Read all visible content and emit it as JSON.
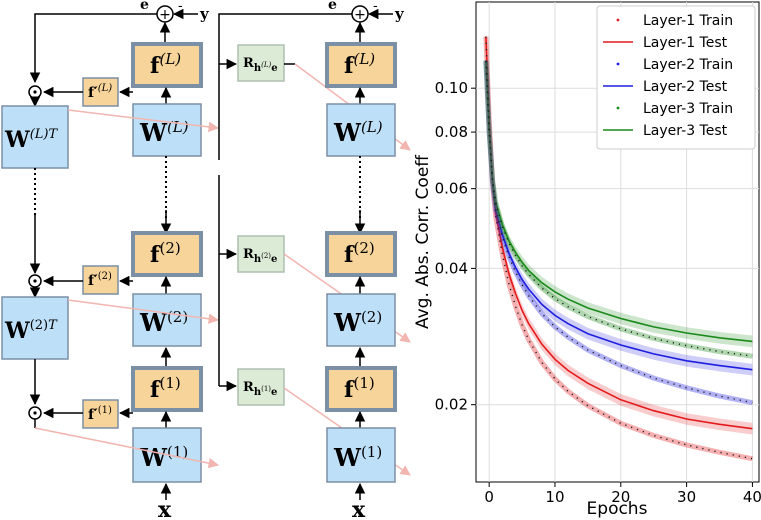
{
  "diagram": {
    "left_net": {
      "e_label": "e",
      "y_label": "y",
      "minus": "-",
      "x_label": "x",
      "fL": "f",
      "fL_sup": "(L)",
      "WL": "W",
      "WL_sup": "(L)",
      "f2": "f",
      "f2_sup": "(2)",
      "W2": "W",
      "W2_sup": "(2)",
      "f1": "f",
      "f1_sup": "(1)",
      "W1": "W",
      "W1_sup": "(1)",
      "WLT": "W",
      "WLT_sup": "(L)",
      "WLT_T": "T",
      "W2T": "W",
      "W2T_sup": "(2)",
      "W2T_T": "T",
      "dL": "f′",
      "dL_sup": "(L)",
      "d2": "f′",
      "d2_sup": "(2)",
      "d1": "f′",
      "d1_sup": "(1)"
    },
    "right_net": {
      "e_label": "e",
      "y_label": "y",
      "minus": "-",
      "x_label": "x",
      "RL": "R",
      "RL_sub": "h",
      "RL_subsup": "(L)",
      "RL_e": "e",
      "R2": "R",
      "R2_sub": "h",
      "R2_subsup": "(2)",
      "R2_e": "e",
      "R1": "R",
      "R1_sub": "h",
      "R1_subsup": "(1)",
      "R1_e": "e"
    },
    "colors": {
      "weight_box": "#bde0f8",
      "act_box": "#f7d49a",
      "box_border": "#7b8fa5",
      "rbox": "#dcebd6",
      "pink_arrow": "#f2b5b0"
    }
  },
  "chart_data": {
    "type": "line",
    "xlabel": "Epochs",
    "ylabel": "Avg. Abs. Corr. Coeff",
    "y_scale": "log",
    "xlim": [
      -2,
      41
    ],
    "ylim": [
      0.0135,
      0.155
    ],
    "x_ticks": [
      0,
      10,
      20,
      30,
      40
    ],
    "x_tick_labels": [
      "0",
      "10",
      "20",
      "30",
      "40"
    ],
    "y_ticks": [
      0.02,
      0.04,
      0.06,
      0.08,
      0.1
    ],
    "y_tick_labels": [
      "0.02",
      "0.04",
      "0.06",
      "0.08",
      "0.10"
    ],
    "grid": true,
    "legend_position": "top-right",
    "x": [
      -0.5,
      0,
      0.5,
      1,
      2,
      3,
      4,
      5,
      6,
      8,
      10,
      12,
      15,
      20,
      25,
      30,
      35,
      40
    ],
    "series": [
      {
        "name": "Layer-1 Train",
        "style": "dotted",
        "color": "#e41a1c",
        "values": [
          0.13,
          0.085,
          0.062,
          0.052,
          0.043,
          0.037,
          0.033,
          0.03,
          0.0278,
          0.0248,
          0.0228,
          0.0214,
          0.0199,
          0.0182,
          0.0171,
          0.0163,
          0.0157,
          0.0152
        ]
      },
      {
        "name": "Layer-1 Test",
        "style": "solid",
        "color": "#e41a1c",
        "values": [
          0.13,
          0.085,
          0.062,
          0.053,
          0.0445,
          0.039,
          0.0352,
          0.0323,
          0.0302,
          0.0272,
          0.0252,
          0.0238,
          0.0223,
          0.0205,
          0.0194,
          0.0186,
          0.0181,
          0.0177
        ]
      },
      {
        "name": "Layer-2 Train",
        "style": "dotted",
        "color": "#1f1fe0",
        "values": [
          0.115,
          0.08,
          0.062,
          0.054,
          0.047,
          0.0425,
          0.0393,
          0.0368,
          0.0348,
          0.0318,
          0.0297,
          0.0282,
          0.0264,
          0.0244,
          0.0229,
          0.0218,
          0.0209,
          0.0202
        ]
      },
      {
        "name": "Layer-2 Test",
        "style": "solid",
        "color": "#1f1fe0",
        "values": [
          0.115,
          0.08,
          0.062,
          0.054,
          0.0475,
          0.0432,
          0.0402,
          0.0378,
          0.036,
          0.0333,
          0.0315,
          0.0302,
          0.0287,
          0.0271,
          0.0259,
          0.025,
          0.0244,
          0.0239
        ]
      },
      {
        "name": "Layer-3 Train",
        "style": "dotted",
        "color": "#1a8a1a",
        "values": [
          0.115,
          0.08,
          0.063,
          0.056,
          0.0495,
          0.0455,
          0.0427,
          0.0405,
          0.0388,
          0.0362,
          0.0343,
          0.0329,
          0.0313,
          0.0294,
          0.028,
          0.027,
          0.0262,
          0.0256
        ]
      },
      {
        "name": "Layer-3 Test",
        "style": "solid",
        "color": "#1a8a1a",
        "values": [
          0.115,
          0.08,
          0.063,
          0.056,
          0.05,
          0.046,
          0.0434,
          0.0413,
          0.0396,
          0.0372,
          0.0355,
          0.0342,
          0.0327,
          0.031,
          0.0297,
          0.0288,
          0.0281,
          0.0276
        ]
      }
    ]
  }
}
